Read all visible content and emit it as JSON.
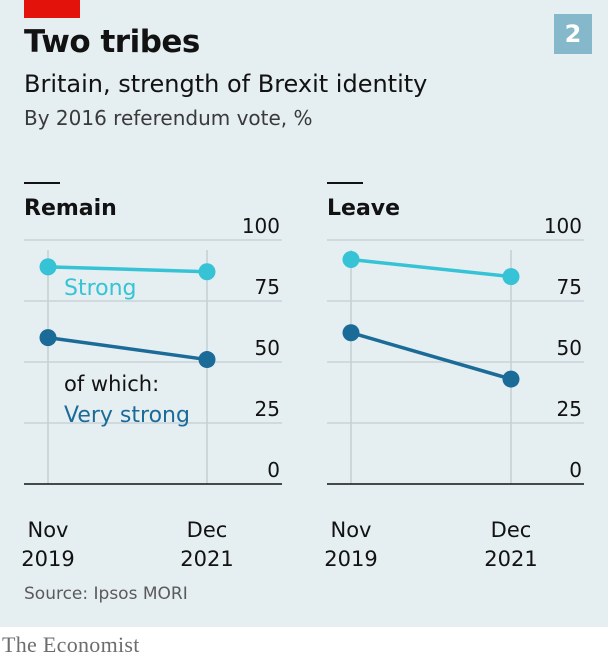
{
  "header": {
    "title": "Two tribes",
    "subtitle": "Britain, strength of Brexit identity",
    "note": "By 2016 referendum vote, %",
    "chart_number": "2"
  },
  "footer": {
    "source": "Source: Ipsos MORI",
    "brand": "The Economist"
  },
  "colors": {
    "background": "#e5eef1",
    "strong": "#36c3d6",
    "very_strong": "#1b6b99",
    "accent_red": "#e3120b",
    "badge": "#85b8ca"
  },
  "chart_data": [
    {
      "type": "line",
      "title": "Remain",
      "x": [
        "Nov 2019",
        "Dec 2021"
      ],
      "x_tick_labels": [
        [
          "Nov",
          "2019"
        ],
        [
          "Dec",
          "2021"
        ]
      ],
      "ylim": [
        0,
        100
      ],
      "yticks": [
        0,
        25,
        50,
        75,
        100
      ],
      "grid": true,
      "series": [
        {
          "name": "Strong",
          "color": "#36c3d6",
          "values": [
            89,
            87
          ]
        },
        {
          "name": "Very strong",
          "color": "#1b6b99",
          "values": [
            60,
            51
          ]
        }
      ],
      "annotations": [
        "Strong",
        "of which:",
        "Very strong"
      ]
    },
    {
      "type": "line",
      "title": "Leave",
      "x": [
        "Nov 2019",
        "Dec 2021"
      ],
      "x_tick_labels": [
        [
          "Nov",
          "2019"
        ],
        [
          "Dec",
          "2021"
        ]
      ],
      "ylim": [
        0,
        100
      ],
      "yticks": [
        0,
        25,
        50,
        75,
        100
      ],
      "grid": true,
      "series": [
        {
          "name": "Strong",
          "color": "#36c3d6",
          "values": [
            92,
            85
          ]
        },
        {
          "name": "Very strong",
          "color": "#1b6b99",
          "values": [
            62,
            43
          ]
        }
      ]
    }
  ]
}
